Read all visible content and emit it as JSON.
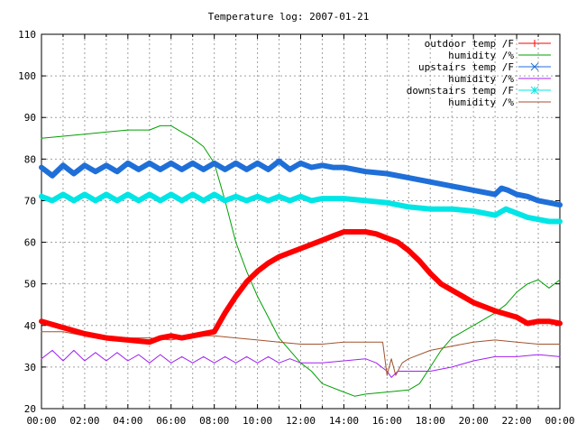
{
  "chart_data": {
    "type": "line",
    "title": "Temperature log: 2007-01-21",
    "xlabel": "",
    "ylabel": "",
    "xlim": [
      0,
      24
    ],
    "ylim": [
      20,
      110
    ],
    "x_ticks": [
      "00:00",
      "02:00",
      "04:00",
      "06:00",
      "08:00",
      "10:00",
      "12:00",
      "14:00",
      "16:00",
      "18:00",
      "20:00",
      "22:00",
      "00:00"
    ],
    "y_ticks": [
      20,
      30,
      40,
      50,
      60,
      70,
      80,
      90,
      100,
      110
    ],
    "grid": true,
    "legend_position": "top-right",
    "series": [
      {
        "name": "outdoor temp /F",
        "color": "#ff0000",
        "marker": "plus",
        "line_width": 6,
        "x": [
          0,
          1,
          2,
          3,
          4,
          5,
          5.5,
          6,
          6.5,
          7,
          7.5,
          8,
          8.5,
          9,
          9.5,
          10,
          10.5,
          11,
          12,
          13,
          13.5,
          14,
          14.5,
          15,
          15.5,
          16,
          16.5,
          17,
          17.5,
          18,
          18.5,
          19,
          20,
          21,
          22,
          22.5,
          23,
          23.5,
          24
        ],
        "values": [
          41,
          39.5,
          38,
          37,
          36.5,
          36,
          37,
          37.5,
          37,
          37.5,
          38,
          38.5,
          43,
          47,
          50.5,
          53,
          55,
          56.5,
          58.5,
          60.5,
          61.5,
          62.5,
          62.5,
          62.5,
          62,
          61,
          60,
          58,
          55.5,
          52.5,
          50,
          48.5,
          45.5,
          43.5,
          42,
          40.5,
          41,
          41,
          40.5
        ]
      },
      {
        "name": "humidity /%",
        "color": "#00a000",
        "marker": "none",
        "line_width": 1,
        "x": [
          0,
          1,
          2,
          3,
          4,
          5,
          5.5,
          6,
          6.5,
          7,
          7.5,
          8,
          8.5,
          9,
          9.5,
          10,
          10.5,
          11,
          11.5,
          12,
          12.5,
          13,
          14,
          14.5,
          15,
          16,
          17,
          17.5,
          18,
          18.5,
          19,
          20,
          21,
          21.5,
          22,
          22.5,
          23,
          23.5,
          24
        ],
        "values": [
          85,
          85.5,
          86,
          86.5,
          87,
          87,
          88,
          88,
          86.5,
          85,
          83,
          79,
          70,
          60,
          53,
          47,
          42,
          37,
          34,
          31,
          29,
          26,
          24,
          23,
          23.5,
          24,
          24.5,
          26,
          30,
          34,
          37,
          40,
          43,
          45,
          48,
          50,
          51,
          49,
          51
        ]
      },
      {
        "name": "upstairs temp /F",
        "color": "#1f6fd8",
        "marker": "cross",
        "line_width": 6,
        "x": [
          0,
          0.5,
          1,
          1.5,
          2,
          2.5,
          3,
          3.5,
          4,
          4.5,
          5,
          5.5,
          6,
          6.5,
          7,
          7.5,
          8,
          8.5,
          9,
          9.5,
          10,
          10.5,
          11,
          11.5,
          12,
          12.5,
          13,
          13.5,
          14,
          15,
          16,
          17,
          18,
          19,
          20,
          21,
          21.3,
          21.6,
          22,
          22.5,
          23,
          23.5,
          24
        ],
        "values": [
          78,
          76,
          78.5,
          76.5,
          78.5,
          77,
          78.5,
          77,
          79,
          77.5,
          79,
          77.5,
          79,
          77.5,
          79,
          77.5,
          79,
          77.5,
          79,
          77.5,
          79,
          77.5,
          79.5,
          77.5,
          79,
          78,
          78.5,
          78,
          78,
          77,
          76.5,
          75.5,
          74.5,
          73.5,
          72.5,
          71.5,
          73,
          72.5,
          71.5,
          71,
          70,
          69.5,
          69
        ]
      },
      {
        "name": "humidity /%",
        "color": "#a020f0",
        "marker": "none",
        "line_width": 1,
        "x": [
          0,
          0.5,
          1,
          1.5,
          2,
          2.5,
          3,
          3.5,
          4,
          4.5,
          5,
          5.5,
          6,
          6.5,
          7,
          7.5,
          8,
          8.5,
          9,
          9.5,
          10,
          10.5,
          11,
          11.5,
          12,
          13,
          14,
          15,
          15.5,
          16,
          16.2,
          16.5,
          17,
          18,
          19,
          20,
          21,
          22,
          23,
          24
        ],
        "values": [
          32,
          34,
          31.5,
          34,
          31.5,
          33.5,
          31.5,
          33.5,
          31.5,
          33,
          31,
          33,
          31,
          32.5,
          31,
          32.5,
          31,
          32.5,
          31,
          32.5,
          31,
          32.5,
          31,
          32,
          31,
          31,
          31.5,
          32,
          31,
          29,
          27.5,
          29,
          29,
          29,
          30,
          31.5,
          32.5,
          32.5,
          33,
          32.5
        ]
      },
      {
        "name": "downstairs temp /F",
        "color": "#00e5e5",
        "marker": "star",
        "line_width": 6,
        "x": [
          0,
          0.5,
          1,
          1.5,
          2,
          2.5,
          3,
          3.5,
          4,
          4.5,
          5,
          5.5,
          6,
          6.5,
          7,
          7.5,
          8,
          8.5,
          9,
          9.5,
          10,
          10.5,
          11,
          11.5,
          12,
          12.5,
          13,
          13.5,
          14,
          15,
          16,
          17,
          18,
          19,
          20,
          21,
          21.5,
          22,
          22.5,
          23,
          23.5,
          24
        ],
        "values": [
          71,
          70,
          71.5,
          70,
          71.5,
          70,
          71.5,
          70,
          71.5,
          70,
          71.5,
          70,
          71.5,
          70,
          71.5,
          70,
          71.5,
          70,
          71,
          70,
          71,
          70,
          71,
          70,
          71,
          70,
          70.5,
          70.5,
          70.5,
          70,
          69.5,
          68.5,
          68,
          68,
          67.5,
          66.5,
          68,
          67,
          66,
          65.5,
          65,
          65
        ]
      },
      {
        "name": "humidity /%",
        "color": "#a0522d",
        "marker": "none",
        "line_width": 1,
        "x": [
          0,
          1,
          2,
          3,
          4,
          5,
          6,
          7,
          8,
          9,
          10,
          11,
          12,
          13,
          14,
          15,
          15.5,
          15.8,
          16,
          16.2,
          16.4,
          16.7,
          17,
          18,
          19,
          20,
          21,
          22,
          23,
          24
        ],
        "values": [
          38.5,
          38.5,
          37.5,
          37.5,
          37,
          37,
          36.5,
          37.5,
          37.5,
          37,
          36.5,
          36,
          35.5,
          35.5,
          36,
          36,
          36,
          36,
          28,
          32,
          28,
          31,
          32,
          34,
          35,
          36,
          36.5,
          36,
          35.5,
          35.5
        ]
      }
    ]
  }
}
